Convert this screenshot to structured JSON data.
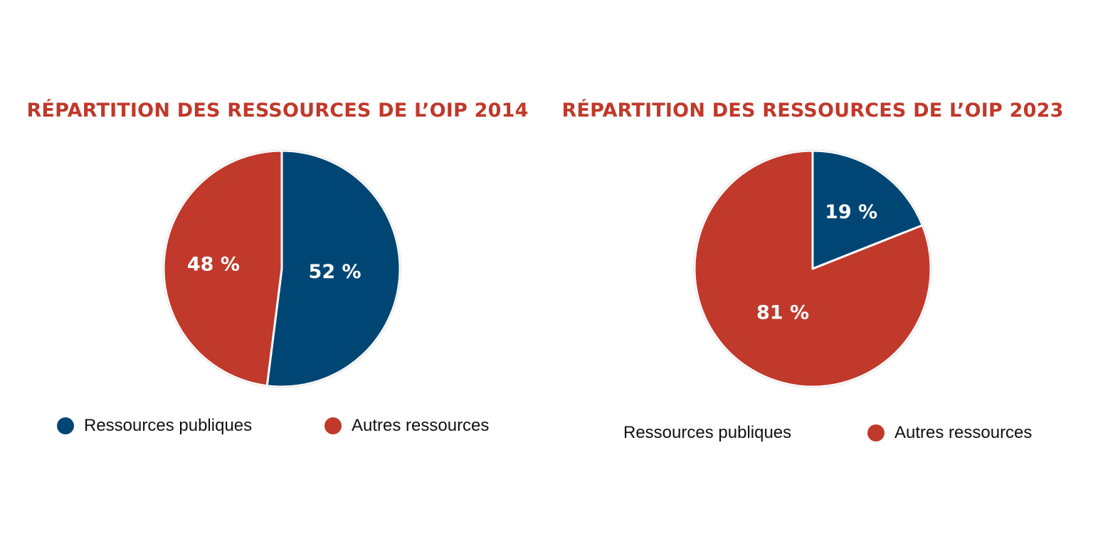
{
  "colors": {
    "public": "#004675",
    "other": "#c0392b",
    "title": "#c0392b"
  },
  "chart_data": [
    {
      "type": "pie",
      "title": "RÉPARTITION DES RESSOURCES DE L’OIP 2014",
      "categories": [
        "Ressources publiques",
        "Autres ressources"
      ],
      "values": [
        52,
        48
      ],
      "labels": [
        "52 %",
        "48 %"
      ],
      "legend": [
        {
          "label": "Ressources publiques",
          "color": "#004675",
          "marker": true
        },
        {
          "label": "Autres ressources",
          "color": "#c0392b",
          "marker": true
        }
      ],
      "legend_position": "bottom"
    },
    {
      "type": "pie",
      "title": "RÉPARTITION DES RESSOURCES DE L’OIP 2023",
      "categories": [
        "Ressources publiques",
        "Autres ressources"
      ],
      "values": [
        19,
        81
      ],
      "labels": [
        "19 %",
        "81 %"
      ],
      "legend": [
        {
          "label": "Ressources publiques",
          "color": "#004675",
          "marker": false
        },
        {
          "label": "Autres ressources",
          "color": "#c0392b",
          "marker": true
        }
      ],
      "legend_position": "bottom"
    }
  ]
}
